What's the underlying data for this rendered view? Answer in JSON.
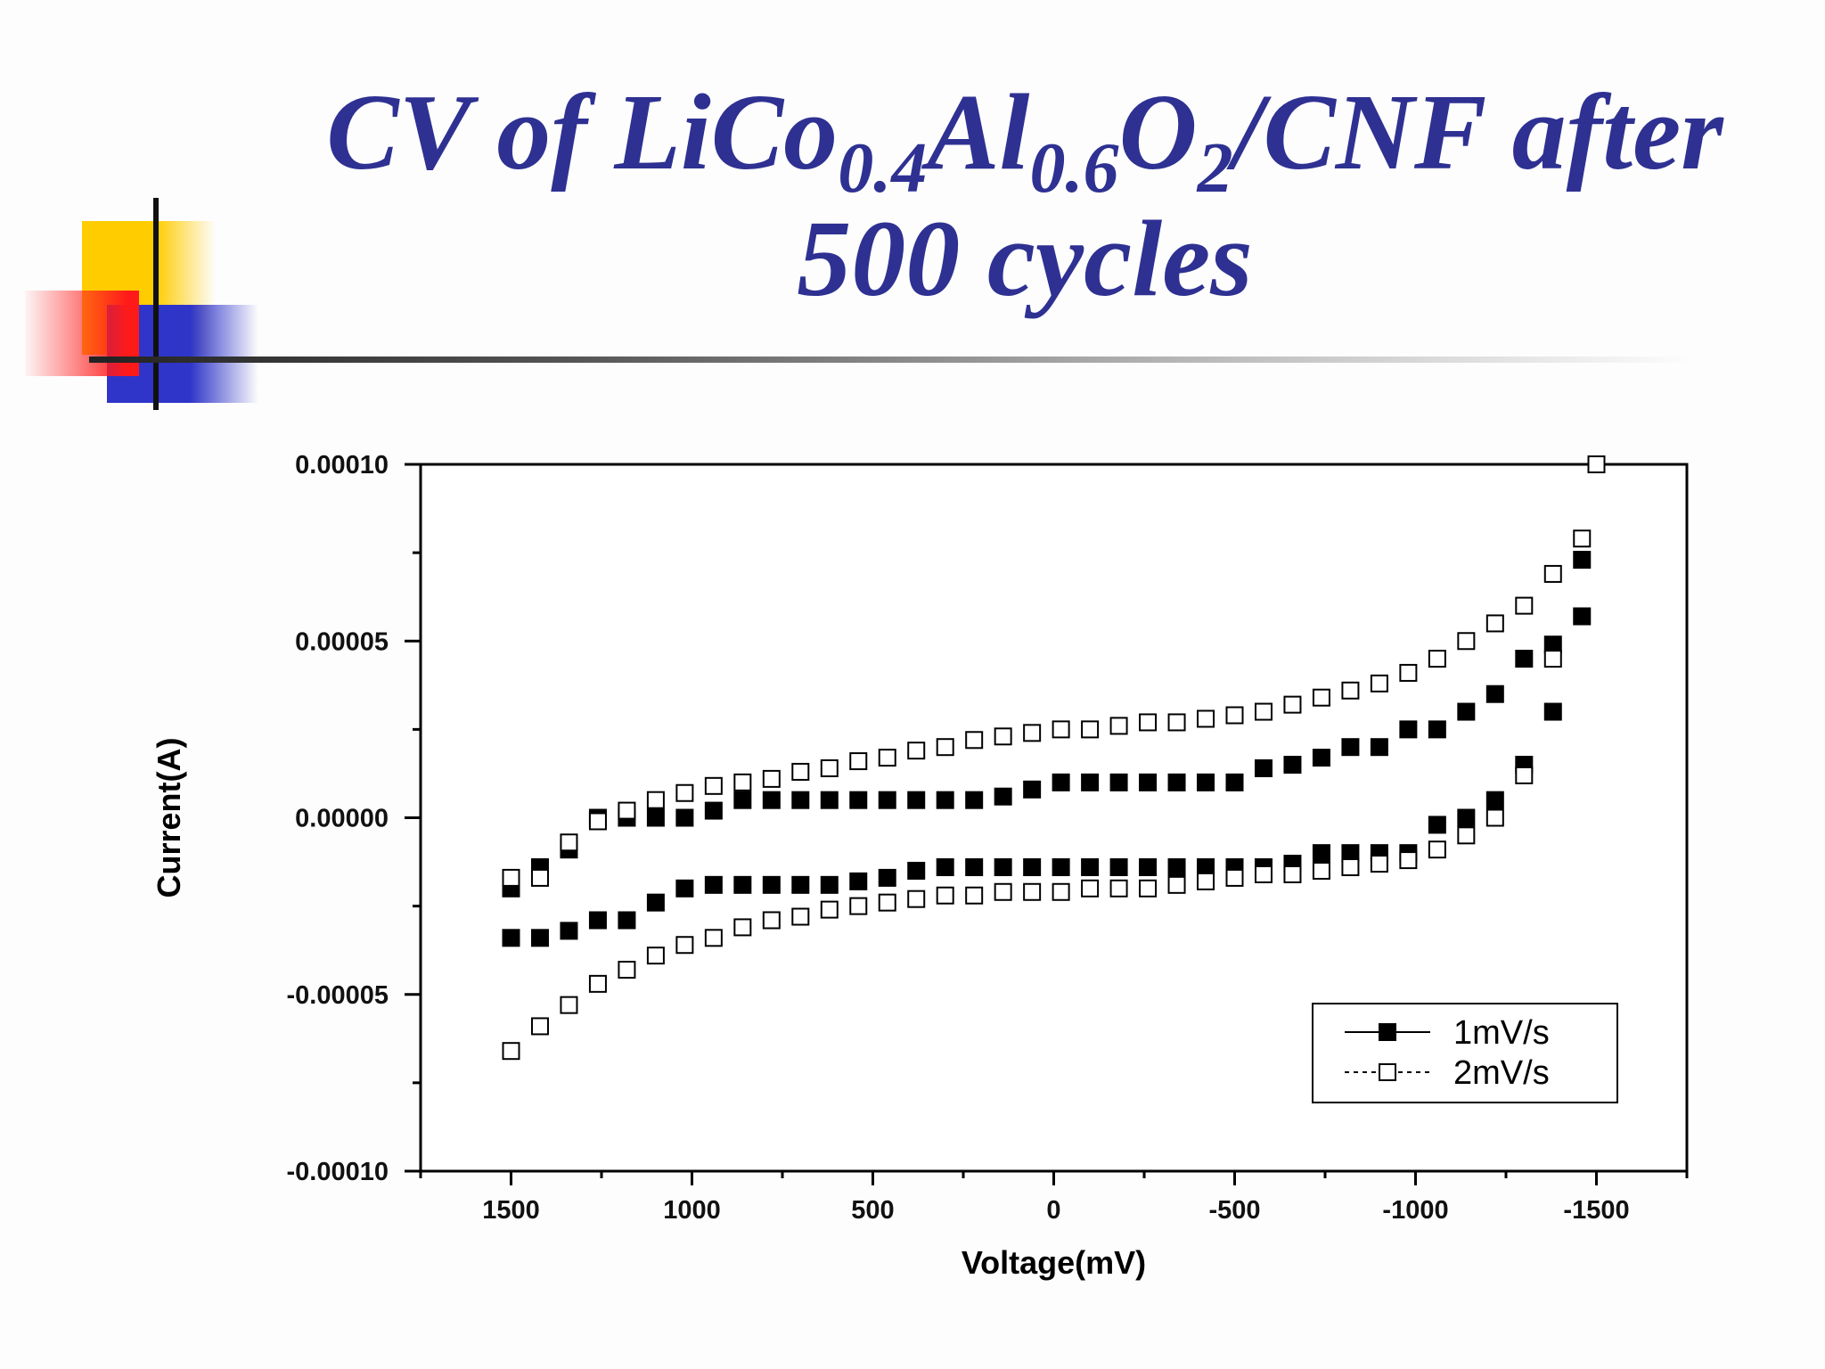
{
  "slide": {
    "title_prefix": "CV of LiCo",
    "sub1": "0.4",
    "title_al": "Al",
    "sub2": "0.6",
    "title_o": "O",
    "sub3": "2",
    "title_suffix": "/CNF after",
    "title_line2": "500 cycles",
    "title_color": "#2e3192"
  },
  "chart_data": {
    "type": "scatter",
    "xlabel": "Voltage(mV)",
    "ylabel": "Current(A)",
    "xlim": [
      1750,
      -1750
    ],
    "ylim": [
      -0.0001,
      0.0001
    ],
    "x_reversed": true,
    "xticks": [
      "1500",
      "1000",
      "500",
      "0",
      "-500",
      "-1000",
      "-1500"
    ],
    "yticks": [
      "0.00010",
      "0.00005",
      "0.00000",
      "-0.00005",
      "-0.00010"
    ],
    "legend_position": "bottom-right",
    "series": [
      {
        "name": "1mV/s",
        "marker": "filled-square",
        "color": "#000000",
        "upper": {
          "x": [
            1500,
            1420,
            1340,
            1260,
            1180,
            1100,
            1020,
            940,
            860,
            780,
            700,
            620,
            540,
            460,
            380,
            300,
            220,
            140,
            60,
            -20,
            -100,
            -180,
            -260,
            -340,
            -420,
            -500,
            -580,
            -660,
            -740,
            -820,
            -900,
            -980,
            -1060,
            -1140,
            -1220,
            -1300,
            -1380,
            -1460
          ],
          "y": [
            -2e-05,
            -1.4e-05,
            -9e-06,
            0.0,
            0.0,
            0.0,
            0.0,
            2e-06,
            5e-06,
            5e-06,
            5e-06,
            5e-06,
            5e-06,
            5e-06,
            5e-06,
            5e-06,
            5e-06,
            6e-06,
            8e-06,
            1e-05,
            1e-05,
            1e-05,
            1e-05,
            1e-05,
            1e-05,
            1e-05,
            1.4e-05,
            1.5e-05,
            1.7e-05,
            2e-05,
            2e-05,
            2.5e-05,
            2.5e-05,
            3e-05,
            3.5e-05,
            4.5e-05,
            4.9e-05,
            5.7e-05
          ]
        },
        "lower": {
          "x": [
            1500,
            1420,
            1340,
            1260,
            1180,
            1100,
            1020,
            940,
            860,
            780,
            700,
            620,
            540,
            460,
            380,
            300,
            220,
            140,
            60,
            -20,
            -100,
            -180,
            -260,
            -340,
            -420,
            -500,
            -580,
            -660,
            -740,
            -820,
            -900,
            -980,
            -1060,
            -1140,
            -1220,
            -1300,
            -1380,
            -1460
          ],
          "y": [
            -3.4e-05,
            -3.4e-05,
            -3.2e-05,
            -2.9e-05,
            -2.9e-05,
            -2.4e-05,
            -2e-05,
            -1.9e-05,
            -1.9e-05,
            -1.9e-05,
            -1.9e-05,
            -1.9e-05,
            -1.8e-05,
            -1.7e-05,
            -1.5e-05,
            -1.4e-05,
            -1.4e-05,
            -1.4e-05,
            -1.4e-05,
            -1.4e-05,
            -1.4e-05,
            -1.4e-05,
            -1.4e-05,
            -1.4e-05,
            -1.4e-05,
            -1.4e-05,
            -1.4e-05,
            -1.3e-05,
            -1e-05,
            -1e-05,
            -1e-05,
            -1e-05,
            -2e-06,
            0.0,
            5e-06,
            1.5e-05,
            3e-05,
            7.3e-05
          ]
        }
      },
      {
        "name": "2mV/s",
        "marker": "open-square",
        "color": "#000000",
        "upper": {
          "x": [
            1500,
            1420,
            1340,
            1260,
            1180,
            1100,
            1020,
            940,
            860,
            780,
            700,
            620,
            540,
            460,
            380,
            300,
            220,
            140,
            60,
            -20,
            -100,
            -180,
            -260,
            -340,
            -420,
            -500,
            -580,
            -660,
            -740,
            -820,
            -900,
            -980,
            -1060,
            -1140,
            -1220,
            -1300,
            -1380,
            -1460,
            -1500
          ],
          "y": [
            -1.7e-05,
            -1.7e-05,
            -7e-06,
            -1e-06,
            2e-06,
            5e-06,
            7e-06,
            9e-06,
            1e-05,
            1.1e-05,
            1.3e-05,
            1.4e-05,
            1.6e-05,
            1.7e-05,
            1.9e-05,
            2e-05,
            2.2e-05,
            2.3e-05,
            2.4e-05,
            2.5e-05,
            2.5e-05,
            2.6e-05,
            2.7e-05,
            2.7e-05,
            2.8e-05,
            2.9e-05,
            3e-05,
            3.2e-05,
            3.4e-05,
            3.6e-05,
            3.8e-05,
            4.1e-05,
            4.5e-05,
            5e-05,
            5.5e-05,
            6e-05,
            6.9e-05,
            7.9e-05,
            0.0001
          ]
        },
        "lower": {
          "x": [
            1500,
            1420,
            1340,
            1260,
            1180,
            1100,
            1020,
            940,
            860,
            780,
            700,
            620,
            540,
            460,
            380,
            300,
            220,
            140,
            60,
            -20,
            -100,
            -180,
            -260,
            -340,
            -420,
            -500,
            -580,
            -660,
            -740,
            -820,
            -900,
            -980,
            -1060,
            -1140,
            -1220,
            -1300,
            -1380
          ],
          "y": [
            -6.6e-05,
            -5.9e-05,
            -5.3e-05,
            -4.7e-05,
            -4.3e-05,
            -3.9e-05,
            -3.6e-05,
            -3.4e-05,
            -3.1e-05,
            -2.9e-05,
            -2.8e-05,
            -2.6e-05,
            -2.5e-05,
            -2.4e-05,
            -2.3e-05,
            -2.2e-05,
            -2.2e-05,
            -2.1e-05,
            -2.1e-05,
            -2.1e-05,
            -2e-05,
            -2e-05,
            -2e-05,
            -1.9e-05,
            -1.8e-05,
            -1.7e-05,
            -1.6e-05,
            -1.6e-05,
            -1.5e-05,
            -1.4e-05,
            -1.3e-05,
            -1.2e-05,
            -9e-06,
            -5e-06,
            0.0,
            1.2e-05,
            4.5e-05
          ]
        }
      }
    ]
  }
}
